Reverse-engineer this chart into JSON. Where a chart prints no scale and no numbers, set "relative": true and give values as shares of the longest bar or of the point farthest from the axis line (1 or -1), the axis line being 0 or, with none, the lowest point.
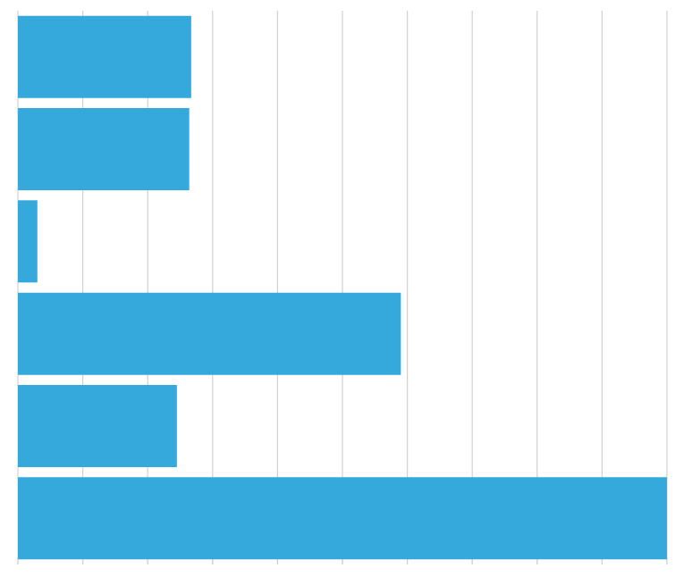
{
  "chart_data": {
    "type": "bar",
    "orientation": "horizontal",
    "relative": true,
    "categories": [
      null,
      null,
      null,
      null,
      null,
      null
    ],
    "values": [
      0.267,
      0.264,
      0.03,
      0.59,
      0.245,
      1
    ],
    "color": "#36a9dc",
    "grid": "x"
  }
}
